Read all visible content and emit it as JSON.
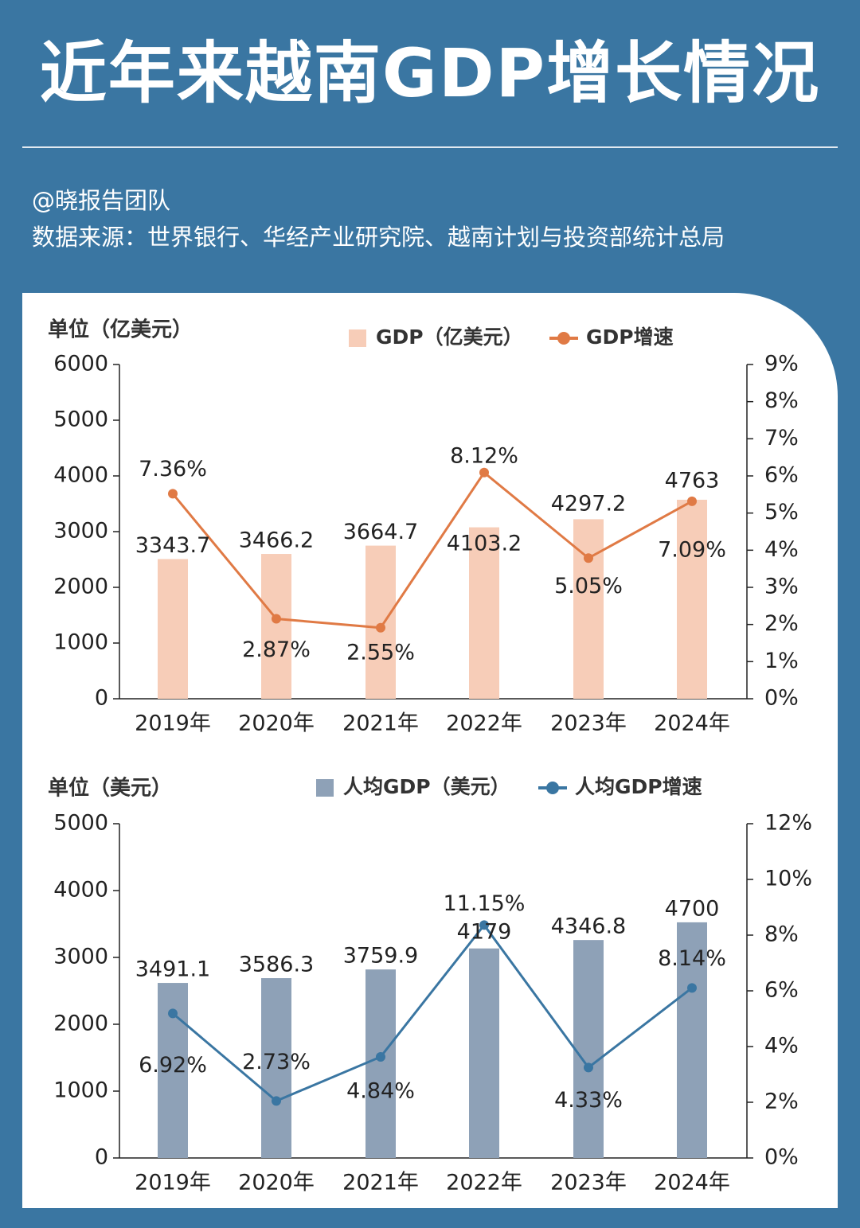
{
  "title": "近年来越南GDP增长情况",
  "byline": "@晓报告团队",
  "source": "数据来源：世界银行、华经产业研究院、越南计划与投资部统计总局",
  "colors": {
    "background": "#3a76a2",
    "gdp_bar": "#f7cdb8",
    "gdp_line": "#e07a45",
    "pc_bar": "#8ea1b7",
    "pc_line": "#3a76a2"
  },
  "chart_data": [
    {
      "type": "bar",
      "unit_label": "单位（亿美元）",
      "categories": [
        "2019年",
        "2020年",
        "2021年",
        "2022年",
        "2023年",
        "2024年"
      ],
      "series": [
        {
          "name": "GDP（亿美元）",
          "kind": "bar",
          "axis": "left",
          "values": [
            3343.7,
            3466.2,
            3664.7,
            4103.2,
            4297.2,
            4763
          ],
          "labels": [
            "3343.7",
            "3466.2",
            "3664.7",
            "4103.2",
            "4297.2",
            "4763"
          ]
        },
        {
          "name": "GDP增速",
          "kind": "line",
          "axis": "right",
          "values": [
            7.36,
            2.87,
            2.55,
            8.12,
            5.05,
            7.09
          ],
          "labels": [
            "7.36%",
            "2.87%",
            "2.55%",
            "8.12%",
            "5.05%",
            "7.09%"
          ]
        }
      ],
      "y_left": {
        "min": 0,
        "max": 6000,
        "ticks": [
          "0",
          "1000",
          "2000",
          "3000",
          "4000",
          "5000",
          "6000"
        ]
      },
      "y_right": {
        "min": 0,
        "max": 9,
        "ticks": [
          "0%",
          "1%",
          "2%",
          "3%",
          "4%",
          "5%",
          "6%",
          "7%",
          "8%",
          "9%"
        ]
      },
      "legend": "top-center"
    },
    {
      "type": "bar",
      "unit_label": "单位（美元）",
      "categories": [
        "2019年",
        "2020年",
        "2021年",
        "2022年",
        "2023年",
        "2024年"
      ],
      "series": [
        {
          "name": "人均GDP（美元）",
          "kind": "bar",
          "axis": "left",
          "values": [
            3491.1,
            3586.3,
            3759.9,
            4179,
            4346.8,
            4700
          ],
          "labels": [
            "3491.1",
            "3586.3",
            "3759.9",
            "4179",
            "4346.8",
            "4700"
          ]
        },
        {
          "name": "人均GDP增速",
          "kind": "line",
          "axis": "right",
          "values": [
            6.92,
            2.73,
            4.84,
            11.15,
            4.33,
            8.14
          ],
          "labels": [
            "6.92%",
            "2.73%",
            "4.84%",
            "11.15%",
            "4.33%",
            "8.14%"
          ]
        }
      ],
      "y_left": {
        "min": 0,
        "max": 5000,
        "ticks": [
          "0",
          "1000",
          "2000",
          "3000",
          "4000",
          "5000"
        ]
      },
      "y_right": {
        "min": 0,
        "max": 12,
        "ticks": [
          "0%",
          "2%",
          "4%",
          "6%",
          "8%",
          "10%",
          "12%"
        ]
      },
      "legend": "top-center"
    }
  ]
}
